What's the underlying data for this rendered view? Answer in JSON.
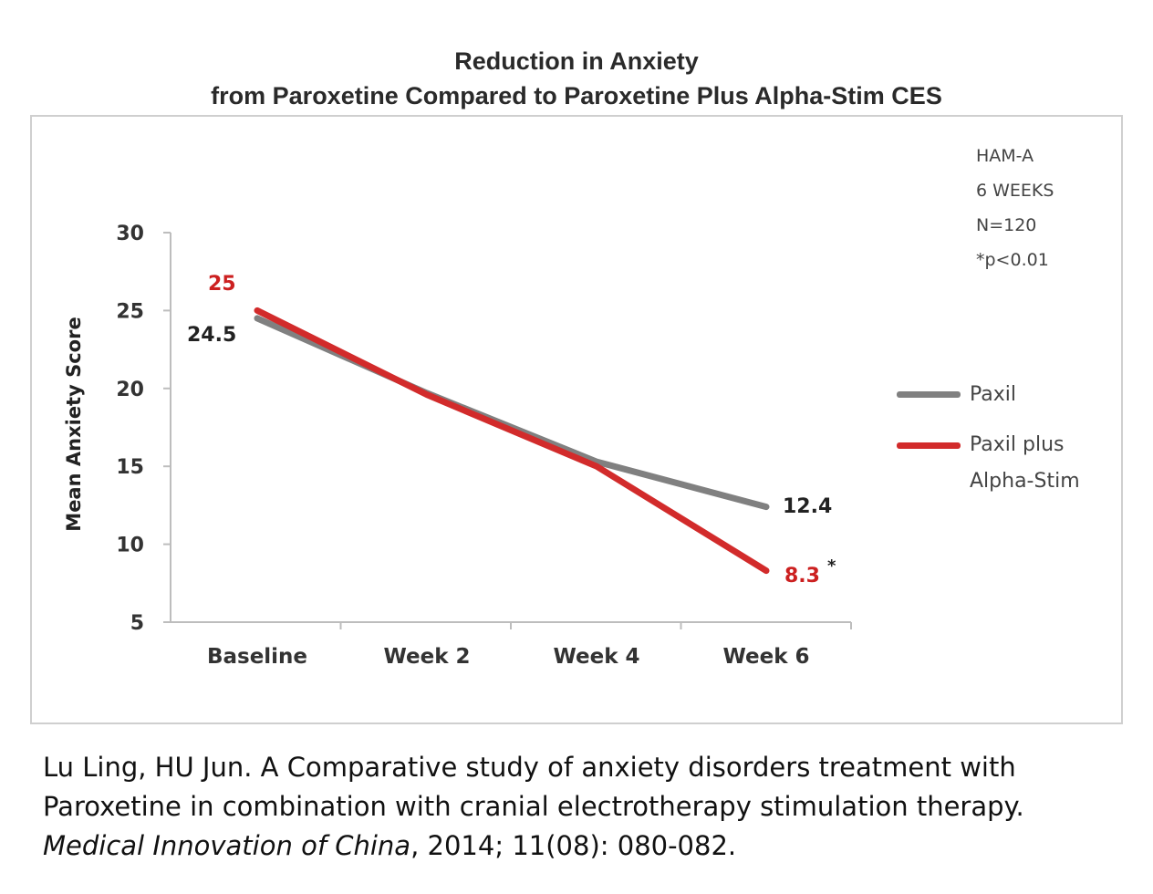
{
  "chart_data": {
    "type": "line",
    "title": "Reduction in Anxiety",
    "subtitle": "from Paroxetine Compared to Paroxetine Plus Alpha-Stim CES",
    "ylabel": "Mean Anxiety Score",
    "xlabel": "",
    "categories": [
      "Baseline",
      "Week 2",
      "Week 4",
      "Week 6"
    ],
    "ylim": [
      5,
      30
    ],
    "yticks": [
      5,
      10,
      15,
      20,
      25,
      30
    ],
    "grid": false,
    "legend_position": "right",
    "series": [
      {
        "name": "Paxil",
        "color": "#808080",
        "values": [
          24.5,
          19.7,
          15.3,
          12.4
        ],
        "labels": {
          "0": "24.5",
          "3": "12.4"
        }
      },
      {
        "name": "Paxil plus Alpha-Stim",
        "color": "#d22b2b",
        "values": [
          25,
          19.6,
          15.0,
          8.3
        ],
        "labels": {
          "0": "25",
          "3": "8.3"
        }
      }
    ],
    "annotation_asterisk": "*",
    "notes": [
      "HAM-A",
      "6 WEEKS",
      "N=120",
      "*p<0.01"
    ]
  },
  "legend": {
    "paxil": "Paxil",
    "paxil_plus_line1": "Paxil plus",
    "paxil_plus_line2": "Alpha-Stim"
  },
  "citation": {
    "line1": "Lu Ling, HU Jun. A Comparative study of anxiety disorders treatment with",
    "line2": "Paroxetine in combination with cranial electrotherapy stimulation therapy.",
    "journal": "Medical Innovation of China",
    "rest": ", 2014; 11(08): 080-082."
  }
}
